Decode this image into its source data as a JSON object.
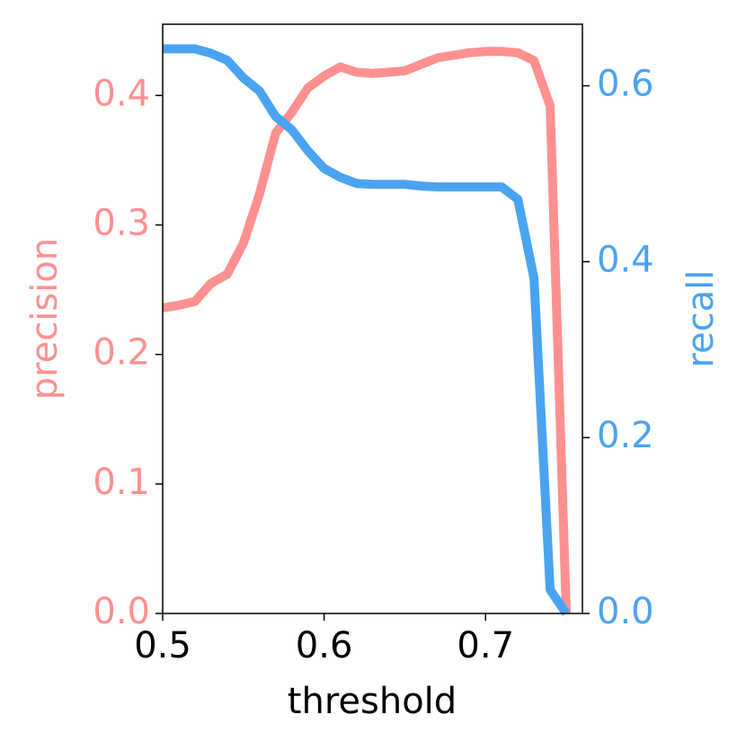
{
  "chart_data": {
    "type": "line",
    "xlabel": "threshold",
    "ylabel": "precision",
    "y2label": "recall",
    "x": [
      0.5,
      0.51,
      0.52,
      0.53,
      0.54,
      0.55,
      0.56,
      0.57,
      0.58,
      0.59,
      0.6,
      0.61,
      0.62,
      0.63,
      0.64,
      0.65,
      0.66,
      0.67,
      0.68,
      0.69,
      0.7,
      0.71,
      0.72,
      0.73,
      0.74,
      0.75
    ],
    "series": [
      {
        "name": "precision",
        "color": "#ff9090",
        "axis": "y",
        "values": [
          0.236,
          0.238,
          0.241,
          0.255,
          0.262,
          0.286,
          0.324,
          0.371,
          0.387,
          0.406,
          0.415,
          0.422,
          0.418,
          0.417,
          0.418,
          0.419,
          0.424,
          0.429,
          0.431,
          0.433,
          0.434,
          0.434,
          0.433,
          0.427,
          0.392,
          0.0
        ]
      },
      {
        "name": "recall",
        "color": "#4aa3f0",
        "axis": "y2",
        "values": [
          0.642,
          0.642,
          0.642,
          0.637,
          0.629,
          0.609,
          0.594,
          0.565,
          0.55,
          0.526,
          0.506,
          0.496,
          0.489,
          0.488,
          0.488,
          0.488,
          0.486,
          0.485,
          0.485,
          0.485,
          0.485,
          0.485,
          0.471,
          0.381,
          0.027,
          0.0
        ]
      }
    ],
    "xlim": [
      0.5,
      0.76
    ],
    "xticks": [
      0.5,
      0.6,
      0.7
    ],
    "ylim": [
      0,
      0.455
    ],
    "yticks": [
      {
        "value": 0,
        "label": "0.0"
      },
      0.1,
      0.2,
      0.3,
      0.4
    ],
    "y2lim": [
      0,
      0.67
    ],
    "y2ticks": [
      {
        "value": 0,
        "label": "0.0"
      },
      0.2,
      0.4,
      0.6
    ],
    "grid": false
  }
}
